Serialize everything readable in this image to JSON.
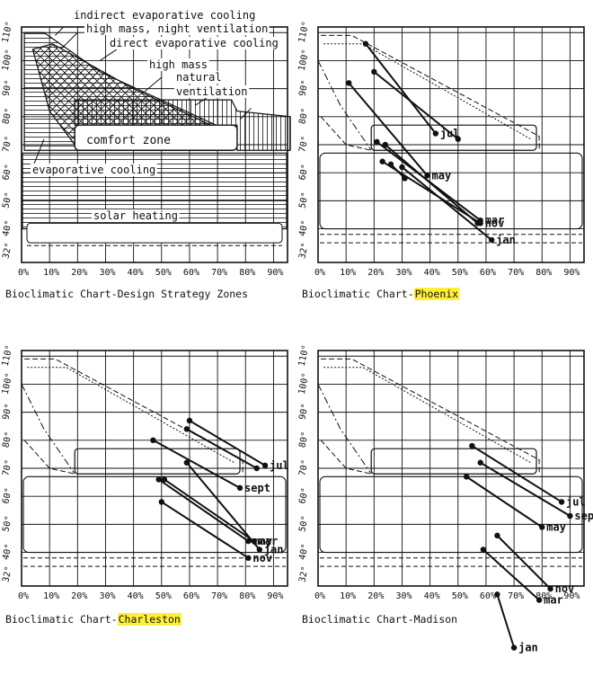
{
  "colors": {
    "ink": "#111111",
    "highlight": "#ffef3a",
    "paper": "#ffffff"
  },
  "x_ticks": [
    "0%",
    "10%",
    "20%",
    "30%",
    "40%",
    "50%",
    "60%",
    "70%",
    "80%",
    "90%"
  ],
  "y_ticks": [
    "32°",
    "40°",
    "50°",
    "60°",
    "70°",
    "80°",
    "90°",
    "100°",
    "110°"
  ],
  "panels": [
    {
      "id": "zones",
      "title_prefix": "Bioclimatic Chart-Design Strategy Zones",
      "title_highlight": "",
      "zone_labels": {
        "indirect_evap": "indirect evaporative cooling",
        "high_mass_night": "high mass, night ventilation",
        "direct_evap": "direct evaporative cooling",
        "high_mass": "high mass",
        "natural": "natural",
        "ventilation": "ventilation",
        "comfort": "comfort zone",
        "evap_cooling": "evaporative cooling",
        "solar": "solar heating"
      }
    },
    {
      "id": "phoenix",
      "title_prefix": "Bioclimatic Chart-",
      "title_highlight": "Phoenix",
      "months": [
        {
          "label": "jul",
          "hi_rh": 17,
          "hi_t": 106,
          "lo_rh": 42,
          "lo_t": 74
        },
        {
          "label": "",
          "hi_rh": 20,
          "hi_t": 96,
          "lo_rh": 50,
          "lo_t": 72
        },
        {
          "label": "may",
          "hi_rh": 11,
          "hi_t": 92,
          "lo_rh": 39,
          "lo_t": 59
        },
        {
          "label": "mar",
          "hi_rh": 21,
          "hi_t": 71,
          "lo_rh": 58,
          "lo_t": 43
        },
        {
          "label": "",
          "hi_rh": 24,
          "hi_t": 70,
          "lo_rh": 57,
          "lo_t": 42
        },
        {
          "label": "nov",
          "hi_rh": 23,
          "hi_t": 64,
          "lo_rh": 58,
          "lo_t": 42
        },
        {
          "label": "",
          "hi_rh": 26,
          "hi_t": 63,
          "lo_rh": 31,
          "lo_t": 58
        },
        {
          "label": "jan",
          "hi_rh": 30,
          "hi_t": 62,
          "lo_rh": 62,
          "lo_t": 36
        }
      ]
    },
    {
      "id": "charleston",
      "title_prefix": "Bioclimatic Chart-",
      "title_highlight": "Charleston",
      "months": [
        {
          "label": "jul",
          "hi_rh": 60,
          "hi_t": 87,
          "lo_rh": 87,
          "lo_t": 71
        },
        {
          "label": "",
          "hi_rh": 59,
          "hi_t": 84,
          "lo_rh": 84,
          "lo_t": 70
        },
        {
          "label": "sept",
          "hi_rh": 47,
          "hi_t": 80,
          "lo_rh": 78,
          "lo_t": 63
        },
        {
          "label": "mar",
          "hi_rh": 51,
          "hi_t": 66,
          "lo_rh": 83,
          "lo_t": 44
        },
        {
          "label": "may",
          "hi_rh": 49,
          "hi_t": 66,
          "lo_rh": 81,
          "lo_t": 44
        },
        {
          "label": "nov",
          "hi_rh": 50,
          "hi_t": 58,
          "lo_rh": 81,
          "lo_t": 38
        },
        {
          "label": "jan",
          "hi_rh": 59,
          "hi_t": 72,
          "lo_rh": 85,
          "lo_t": 41
        }
      ]
    },
    {
      "id": "madison",
      "title_prefix": "Bioclimatic Chart-Madison",
      "title_highlight": "",
      "months": [
        {
          "label": "jul",
          "hi_rh": 55,
          "hi_t": 78,
          "lo_rh": 87,
          "lo_t": 58
        },
        {
          "label": "sept",
          "hi_rh": 58,
          "hi_t": 72,
          "lo_rh": 90,
          "lo_t": 53
        },
        {
          "label": "may",
          "hi_rh": 53,
          "hi_t": 67,
          "lo_rh": 80,
          "lo_t": 49
        },
        {
          "label": "nov",
          "hi_rh": 64,
          "hi_t": 46,
          "lo_rh": 83,
          "lo_t": 27
        },
        {
          "label": "mar",
          "hi_rh": 59,
          "hi_t": 41,
          "lo_rh": 79,
          "lo_t": 23
        },
        {
          "label": "jan",
          "hi_rh": 64,
          "hi_t": 25,
          "lo_rh": 70,
          "lo_t": 6
        }
      ]
    }
  ]
}
